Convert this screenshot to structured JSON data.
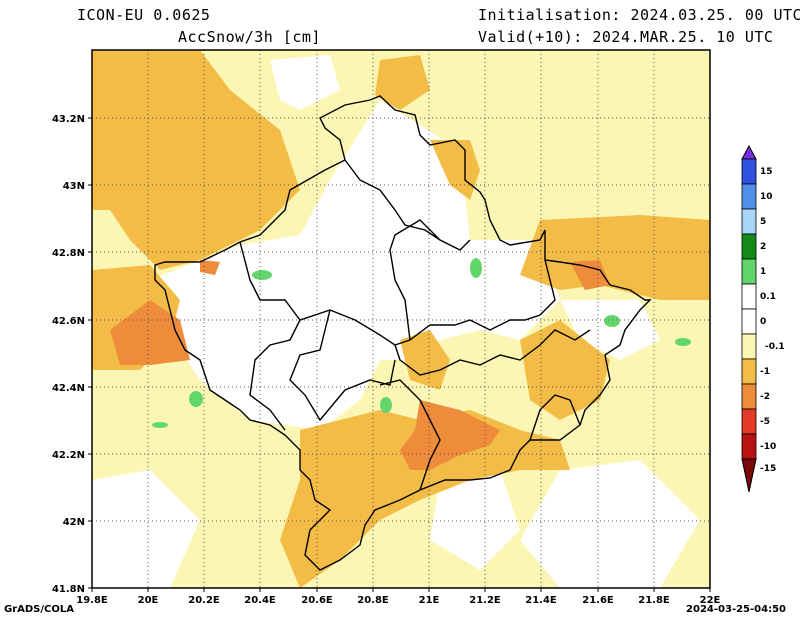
{
  "header": {
    "model": "ICON-EU 0.0625",
    "variable": "AccSnow/3h [cm]",
    "init": "Initialisation: 2024.03.25. 00 UTC",
    "valid": "Valid(+10): 2024.MAR.25. 10 UTC"
  },
  "footer": {
    "left": "GrADS/COLA",
    "right": "2024-03-25-04:50"
  },
  "axes": {
    "x_labels": [
      "19.8E",
      "20E",
      "20.2E",
      "20.4E",
      "20.6E",
      "20.8E",
      "21E",
      "21.2E",
      "21.4E",
      "21.6E",
      "21.8E",
      "22E"
    ],
    "y_labels": [
      "41.8N",
      "42N",
      "42.2N",
      "42.4N",
      "42.6N",
      "42.8N",
      "43N",
      "43.2N"
    ]
  },
  "colorbar": {
    "labels": [
      "15",
      "10",
      "5",
      "2",
      "1",
      "0.1",
      "0",
      "-0.1",
      "-1",
      "-2",
      "-5",
      "-10",
      "-15"
    ],
    "colors": [
      "#7b2be2",
      "#3050e0",
      "#4f8fe8",
      "#a8d6f8",
      "#128a1a",
      "#62d66a",
      "#ffffff",
      "#fcf6b4",
      "#f2bc46",
      "#ee8c3c",
      "#e23a26",
      "#b81212",
      "#7a0a0a"
    ]
  },
  "fields": {
    "snow_loss_shades": [
      "#fcf6b4",
      "#f2bc46",
      "#ee8c3c"
    ],
    "snow_gain_shade": "#62d66a",
    "border_color": "#000000",
    "graticule_color": "#555555"
  }
}
